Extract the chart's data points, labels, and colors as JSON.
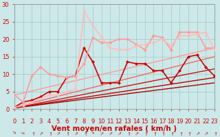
{
  "bg_color": "#cce8e8",
  "grid_color": "#aacccc",
  "xlim": [
    0,
    23
  ],
  "ylim": [
    0,
    30
  ],
  "xticks": [
    0,
    1,
    2,
    3,
    4,
    5,
    6,
    7,
    8,
    9,
    10,
    11,
    12,
    13,
    14,
    15,
    16,
    17,
    18,
    19,
    20,
    21,
    22,
    23
  ],
  "yticks": [
    0,
    5,
    10,
    15,
    20,
    25,
    30
  ],
  "xlabel": "Vent moyen/en rafales ( km/h )",
  "xlabel_color": "#cc0000",
  "xlabel_fontsize": 7.5,
  "tick_color": "#cc0000",
  "tick_fontsize": 6,
  "series": [
    {
      "x": [
        0,
        23
      ],
      "y": [
        0.3,
        7.5
      ],
      "color": "#aa0000",
      "lw": 1.0,
      "marker": null,
      "alpha": 1.0
    },
    {
      "x": [
        0,
        23
      ],
      "y": [
        0.3,
        9.0
      ],
      "color": "#bb0000",
      "lw": 1.0,
      "marker": null,
      "alpha": 1.0
    },
    {
      "x": [
        0,
        23
      ],
      "y": [
        0.3,
        11.5
      ],
      "color": "#cc1111",
      "lw": 1.0,
      "marker": null,
      "alpha": 1.0
    },
    {
      "x": [
        0,
        23
      ],
      "y": [
        0.5,
        15.0
      ],
      "color": "#ee6666",
      "lw": 1.0,
      "marker": null,
      "alpha": 1.0
    },
    {
      "x": [
        0,
        23
      ],
      "y": [
        4.0,
        17.5
      ],
      "color": "#ff9999",
      "lw": 1.0,
      "marker": null,
      "alpha": 1.0
    },
    {
      "x": [
        0,
        1,
        2,
        3,
        4,
        5,
        6,
        7,
        8,
        9,
        10,
        11,
        12,
        13,
        14,
        15,
        16,
        17,
        18,
        19,
        20,
        21,
        22,
        23
      ],
      "y": [
        0.5,
        2,
        2.5,
        3.5,
        5,
        5,
        9,
        9.5,
        17.5,
        13.5,
        7.5,
        7.5,
        7.5,
        13.5,
        13,
        13,
        11,
        11,
        7.5,
        11,
        15,
        15.5,
        12,
        9.5
      ],
      "color": "#cc0000",
      "lw": 1.2,
      "marker": "D",
      "ms": 2.5,
      "alpha": 1.0
    },
    {
      "x": [
        0,
        1,
        2,
        3,
        4,
        5,
        6,
        7,
        8,
        9,
        10,
        11,
        12,
        13,
        14,
        15,
        16,
        17,
        18,
        19,
        20,
        21,
        22,
        23
      ],
      "y": [
        4,
        2,
        9.5,
        12,
        10,
        9.5,
        9,
        9.5,
        13,
        20.5,
        19,
        19,
        20,
        20,
        18.5,
        17,
        21,
        20.5,
        17,
        22,
        22,
        22,
        17.5,
        17.5
      ],
      "color": "#ff9999",
      "lw": 1.2,
      "marker": "D",
      "ms": 2.5,
      "alpha": 1.0
    },
    {
      "x": [
        0,
        1,
        2,
        3,
        4,
        5,
        6,
        7,
        8,
        9,
        10,
        11,
        12,
        13,
        14,
        15,
        16,
        17,
        18,
        19,
        20,
        21,
        22,
        23
      ],
      "y": [
        0.5,
        1,
        2,
        3,
        4,
        4,
        5,
        5.5,
        28,
        24,
        20.5,
        17.5,
        17,
        17,
        18,
        18.5,
        19,
        20,
        18,
        21,
        21,
        21.5,
        22,
        17
      ],
      "color": "#ffbbbb",
      "lw": 1.2,
      "marker": "D",
      "ms": 2.5,
      "alpha": 1.0
    }
  ],
  "arrow_angles": [
    45,
    15,
    270,
    315,
    270,
    315,
    270,
    315,
    270,
    45,
    315,
    315,
    315,
    270,
    315,
    270,
    270,
    270,
    270,
    270,
    270,
    315,
    315,
    270
  ],
  "arrow_color": "#cc0000"
}
